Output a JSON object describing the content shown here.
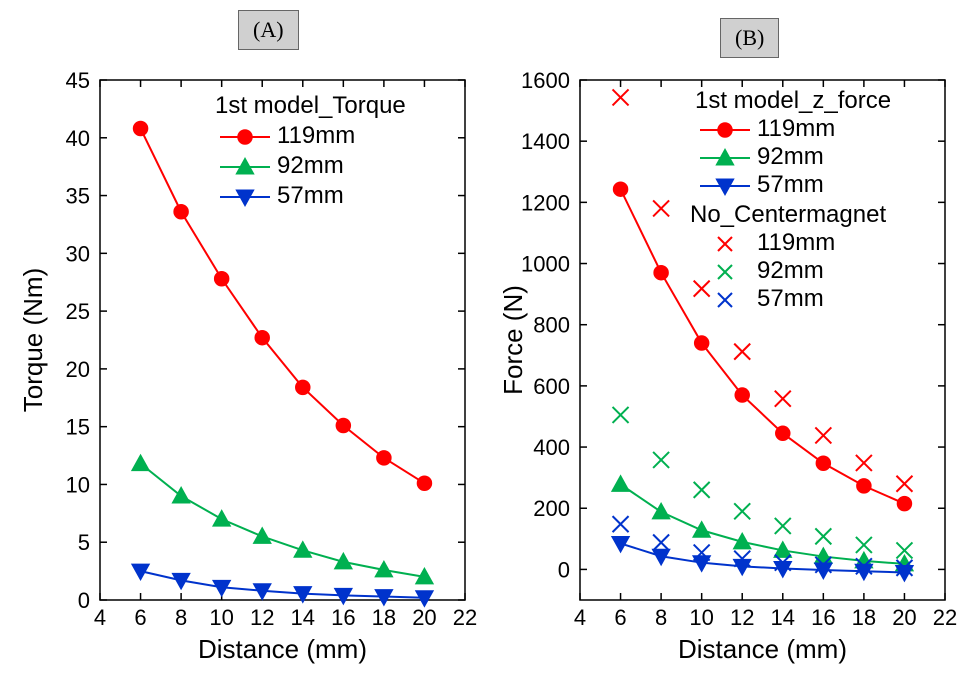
{
  "labels": {
    "panelA": "(A)",
    "panelB": "(B)"
  },
  "chartA": {
    "type": "line",
    "xlabel": "Distance (mm)",
    "ylabel": "Torque (Nm)",
    "xlim": [
      4,
      22
    ],
    "ylim": [
      0,
      45
    ],
    "xtick_step": 2,
    "ytick_step": 5,
    "background": "#ffffff",
    "axis_color": "#000000",
    "legend": {
      "title": "1st model_Torque",
      "items": [
        {
          "label": "119mm",
          "color": "#ff0000",
          "marker": "circle"
        },
        {
          "label": "  92mm",
          "color": "#00b050",
          "marker": "triangle-up"
        },
        {
          "label": "  57mm",
          "color": "#0033cc",
          "marker": "triangle-down"
        }
      ]
    },
    "series": [
      {
        "name": "119mm",
        "color": "#ff0000",
        "marker": "circle",
        "line_width": 2,
        "marker_size": 7,
        "x": [
          6,
          8,
          10,
          12,
          14,
          16,
          18,
          20
        ],
        "y": [
          40.8,
          33.6,
          27.8,
          22.7,
          18.4,
          15.1,
          12.3,
          10.1
        ]
      },
      {
        "name": "92mm",
        "color": "#00b050",
        "marker": "triangle-up",
        "line_width": 2,
        "marker_size": 7,
        "x": [
          6,
          8,
          10,
          12,
          14,
          16,
          18,
          20
        ],
        "y": [
          11.8,
          9.0,
          7.0,
          5.5,
          4.3,
          3.3,
          2.6,
          2.0
        ]
      },
      {
        "name": "57mm",
        "color": "#0033cc",
        "marker": "triangle-down",
        "line_width": 2,
        "marker_size": 7,
        "x": [
          6,
          8,
          10,
          12,
          14,
          16,
          18,
          20
        ],
        "y": [
          2.5,
          1.7,
          1.1,
          0.8,
          0.55,
          0.4,
          0.3,
          0.2
        ]
      }
    ]
  },
  "chartB": {
    "type": "line+scatter",
    "xlabel": "Distance (mm)",
    "ylabel": "Force (N)",
    "xlim": [
      4,
      22
    ],
    "ylim": [
      -100,
      1600
    ],
    "xtick_step": 2,
    "ytick_step": 200,
    "ytick_start": 0,
    "background": "#ffffff",
    "axis_color": "#000000",
    "legend": {
      "title1": "1st model_z_force",
      "items1": [
        {
          "label": "119mm",
          "color": "#ff0000",
          "marker": "circle"
        },
        {
          "label": "  92mm",
          "color": "#00b050",
          "marker": "triangle-up"
        },
        {
          "label": "  57mm",
          "color": "#0033cc",
          "marker": "triangle-down"
        }
      ],
      "title2": "No_Centermagnet",
      "items2": [
        {
          "label": "119mm",
          "color": "#ff0000",
          "marker": "x"
        },
        {
          "label": "  92mm",
          "color": "#00b050",
          "marker": "x"
        },
        {
          "label": "  57mm",
          "color": "#0033cc",
          "marker": "x"
        }
      ]
    },
    "series_line": [
      {
        "name": "119mm",
        "color": "#ff0000",
        "marker": "circle",
        "line_width": 2,
        "marker_size": 7,
        "x": [
          6,
          8,
          10,
          12,
          14,
          16,
          18,
          20
        ],
        "y": [
          1243,
          970,
          740,
          570,
          445,
          347,
          273,
          215
        ]
      },
      {
        "name": "92mm",
        "color": "#00b050",
        "marker": "triangle-up",
        "line_width": 2,
        "marker_size": 7,
        "x": [
          6,
          8,
          10,
          12,
          14,
          16,
          18,
          20
        ],
        "y": [
          278,
          188,
          128,
          90,
          62,
          42,
          28,
          18
        ]
      },
      {
        "name": "57mm",
        "color": "#0033cc",
        "marker": "triangle-down",
        "line_width": 2,
        "marker_size": 7,
        "x": [
          6,
          8,
          10,
          12,
          14,
          16,
          18,
          20
        ],
        "y": [
          85,
          43,
          22,
          10,
          3,
          -2,
          -6,
          -10
        ]
      }
    ],
    "series_scatter": [
      {
        "name": "119mm_nc",
        "color": "#ff0000",
        "marker": "x",
        "marker_size": 8,
        "x": [
          6,
          8,
          10,
          12,
          14,
          16,
          18,
          20
        ],
        "y": [
          1543,
          1180,
          918,
          712,
          558,
          438,
          348,
          280
        ]
      },
      {
        "name": "92mm_nc",
        "color": "#00b050",
        "marker": "x",
        "marker_size": 8,
        "x": [
          6,
          8,
          10,
          12,
          14,
          16,
          18,
          20
        ],
        "y": [
          505,
          358,
          260,
          190,
          142,
          108,
          80,
          62
        ]
      },
      {
        "name": "57mm_nc",
        "color": "#0033cc",
        "marker": "x",
        "marker_size": 8,
        "x": [
          6,
          8,
          10,
          12,
          14,
          16,
          18,
          20
        ],
        "y": [
          148,
          88,
          55,
          35,
          22,
          15,
          10,
          5
        ]
      }
    ]
  }
}
